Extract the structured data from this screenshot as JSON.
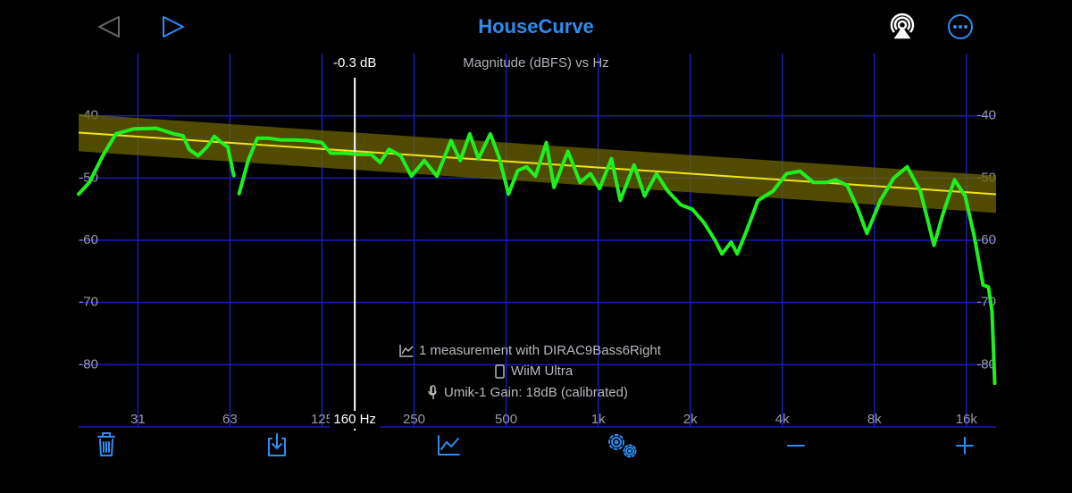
{
  "header": {
    "title": "HouseCurve"
  },
  "chart_data": {
    "type": "line",
    "subtitle": "Magnitude (dBFS) vs Hz",
    "x_scale": "log",
    "xlim": [
      20,
      20000
    ],
    "ylim": [
      -90,
      -30
    ],
    "xticks": [
      {
        "value": 31.25,
        "label": "31"
      },
      {
        "value": 62.5,
        "label": "63"
      },
      {
        "value": 125,
        "label": "125"
      },
      {
        "value": 250,
        "label": "250"
      },
      {
        "value": 500,
        "label": "500"
      },
      {
        "value": 1000,
        "label": "1k"
      },
      {
        "value": 2000,
        "label": "2k"
      },
      {
        "value": 4000,
        "label": "4k"
      },
      {
        "value": 8000,
        "label": "8k"
      },
      {
        "value": 16000,
        "label": "16k"
      }
    ],
    "yticks": [
      -40,
      -50,
      -60,
      -70,
      -80
    ],
    "grid": true,
    "target": {
      "color": "#f2e21a",
      "band_color": "#6b6400",
      "tolerance": 3,
      "x": [
        20,
        20000
      ],
      "values": [
        -42.7,
        -52.6
      ]
    },
    "series": [
      {
        "color": "#1ef01e",
        "x": [
          20,
          21.7,
          24,
          26.5,
          30.3,
          35.9,
          41,
          43.9,
          46,
          49.2,
          52.6,
          55.6,
          58.6,
          61.5,
          64.3,
          65.5,
          67,
          71.7,
          76.8,
          83.2,
          92,
          102,
          112.6,
          124.8,
          133.5,
          147.8,
          163.7,
          181,
          193.6,
          207,
          226,
          245,
          270,
          297,
          330,
          354,
          380,
          406,
          444,
          476,
          509,
          546,
          583,
          624,
          677,
          717,
          796,
          872,
          944,
          1010,
          1105,
          1181,
          1310,
          1419,
          1550,
          1690,
          1860,
          2030,
          2220,
          2410,
          2540,
          2720,
          2850,
          3050,
          3330,
          3730,
          4130,
          4570,
          5050,
          5590,
          5980,
          6520,
          7070,
          7560,
          8370,
          9260,
          10240,
          11330,
          12530,
          13400,
          14630,
          15850,
          16960,
          18140,
          18890,
          19400,
          19800
        ],
        "values": [
          -52.6,
          -50.7,
          -46.4,
          -42.9,
          -42.1,
          -42,
          -42.9,
          -43.2,
          -45.4,
          -46.4,
          -45,
          -43.3,
          -44.3,
          -45,
          -49.6,
          null,
          -52.5,
          -47.2,
          -43.6,
          -43.6,
          -43.9,
          -43.9,
          -44,
          -44.3,
          -46,
          -46,
          -46.2,
          -46.2,
          -47.5,
          -45.4,
          -46.4,
          -49.7,
          -47.2,
          -49.7,
          -44,
          -47.2,
          -42.9,
          -46.9,
          -42.9,
          -46.9,
          -52.6,
          -48.8,
          -48.2,
          -49.7,
          -44.3,
          -51.5,
          -45.7,
          -50.7,
          -49.3,
          -51.7,
          -46.9,
          -53.6,
          -47.9,
          -52.9,
          -49.3,
          -52.1,
          -54.3,
          -55,
          -57.2,
          -60,
          -62.2,
          -60.3,
          -62.2,
          -58.6,
          -53.6,
          -52.1,
          -49.3,
          -48.9,
          -50.7,
          -50.7,
          -50.3,
          -51.2,
          -55,
          -58.9,
          -53.6,
          -50,
          -48.2,
          -52.2,
          -60.8,
          -55.8,
          -50.3,
          -52.9,
          -59.3,
          -67.2,
          -67.5,
          -71.5,
          -83
        ]
      }
    ],
    "cursor": {
      "x": {
        "value": 160,
        "label": "160 Hz"
      },
      "readout": "-0.3 dB"
    }
  },
  "info": [
    "1 measurement with DIRAC9Bass6Right",
    "WiiM Ultra",
    "Umik-1  Gain: 18dB (calibrated)"
  ]
}
